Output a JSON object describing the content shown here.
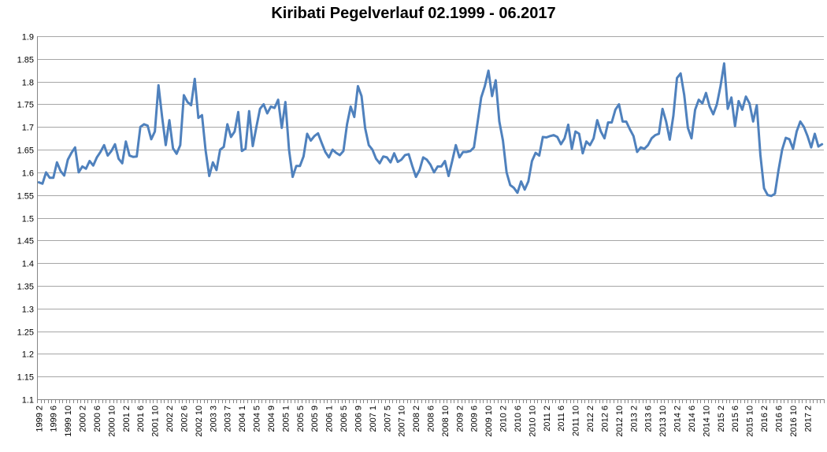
{
  "chart_data": {
    "type": "line",
    "title": "Kiribati Pegelverlauf  02.1999 - 06.2017",
    "xlabel": "",
    "ylabel": "",
    "ylim": [
      1.1,
      1.9
    ],
    "y_ticks": [
      "1.9",
      "1.85",
      "1.8",
      "1.75",
      "1.7",
      "1.65",
      "1.6",
      "1.55",
      "1.5",
      "1.45",
      "1.4",
      "1.35",
      "1.3",
      "1.25",
      "1.2",
      "1.15",
      "1.1"
    ],
    "grid": true,
    "legend": "none",
    "series_color": "#4f81bd",
    "x_tick_labels": [
      "1999 2",
      "1999 6",
      "1999 10",
      "2000 2",
      "2000 6",
      "2000 10",
      "2001 2",
      "2001 6",
      "2001 10",
      "2002 2",
      "2002 6",
      "2002 10",
      "2003 3",
      "2003 7",
      "2004 1",
      "2004 5",
      "2004 9",
      "2005 1",
      "2005 5",
      "2005 9",
      "2006 1",
      "2006 5",
      "2006 9",
      "2007 1",
      "2007 5",
      "2007 10",
      "2008 2",
      "2008 6",
      "2008 10",
      "2009 2",
      "2009 6",
      "2009 10",
      "2010 2",
      "2010 6",
      "2010 10",
      "2011 2",
      "2011 6",
      "2011 10",
      "2012 2",
      "2012 6",
      "2012 10",
      "2013 2",
      "2013 6",
      "2013 10",
      "2014 2",
      "2014 6",
      "2014 10",
      "2015 2",
      "2015 6",
      "2015 10",
      "2016 2",
      "2016 6",
      "2016 10",
      "2017 2"
    ],
    "series": [
      {
        "values": [
          1.578,
          1.575,
          1.6,
          1.588,
          1.588,
          1.622,
          1.603,
          1.593,
          1.628,
          1.643,
          1.655,
          1.6,
          1.613,
          1.608,
          1.625,
          1.615,
          1.633,
          1.645,
          1.66,
          1.637,
          1.647,
          1.662,
          1.63,
          1.62,
          1.668,
          1.637,
          1.634,
          1.635,
          1.7,
          1.706,
          1.703,
          1.673,
          1.69,
          1.792,
          1.722,
          1.66,
          1.715,
          1.653,
          1.641,
          1.66,
          1.77,
          1.755,
          1.748,
          1.806,
          1.72,
          1.726,
          1.648,
          1.592,
          1.622,
          1.605,
          1.65,
          1.656,
          1.706,
          1.678,
          1.69,
          1.733,
          1.647,
          1.652,
          1.735,
          1.658,
          1.7,
          1.74,
          1.75,
          1.73,
          1.745,
          1.742,
          1.76,
          1.698,
          1.755,
          1.65,
          1.59,
          1.614,
          1.614,
          1.635,
          1.685,
          1.67,
          1.68,
          1.686,
          1.665,
          1.645,
          1.633,
          1.65,
          1.643,
          1.638,
          1.647,
          1.706,
          1.745,
          1.722,
          1.79,
          1.768,
          1.697,
          1.66,
          1.65,
          1.63,
          1.62,
          1.635,
          1.633,
          1.622,
          1.642,
          1.623,
          1.628,
          1.638,
          1.64,
          1.614,
          1.59,
          1.605,
          1.633,
          1.628,
          1.617,
          1.6,
          1.613,
          1.613,
          1.625,
          1.592,
          1.625,
          1.66,
          1.633,
          1.645,
          1.645,
          1.647,
          1.655,
          1.71,
          1.765,
          1.79,
          1.824,
          1.768,
          1.803,
          1.712,
          1.67,
          1.6,
          1.572,
          1.566,
          1.555,
          1.58,
          1.562,
          1.58,
          1.625,
          1.643,
          1.637,
          1.678,
          1.677,
          1.68,
          1.682,
          1.678,
          1.662,
          1.675,
          1.705,
          1.652,
          1.69,
          1.685,
          1.642,
          1.668,
          1.66,
          1.675,
          1.715,
          1.69,
          1.675,
          1.71,
          1.71,
          1.738,
          1.75,
          1.712,
          1.712,
          1.695,
          1.68,
          1.645,
          1.655,
          1.652,
          1.66,
          1.675,
          1.682,
          1.685,
          1.74,
          1.712,
          1.672,
          1.725,
          1.808,
          1.818,
          1.77,
          1.698,
          1.675,
          1.738,
          1.76,
          1.752,
          1.775,
          1.745,
          1.728,
          1.75,
          1.79,
          1.84,
          1.74,
          1.765,
          1.702,
          1.757,
          1.738,
          1.767,
          1.752,
          1.712,
          1.748,
          1.638,
          1.565,
          1.55,
          1.548,
          1.553,
          1.605,
          1.65,
          1.676,
          1.673,
          1.652,
          1.69,
          1.712,
          1.7,
          1.68,
          1.655,
          1.685,
          1.657,
          1.662
        ]
      }
    ]
  }
}
